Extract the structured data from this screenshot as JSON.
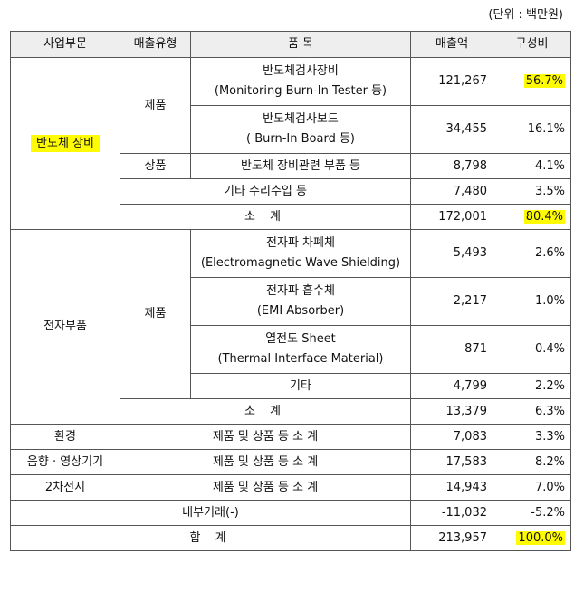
{
  "unit_note": "(단위 : 백만원)",
  "colors": {
    "header_bg": "#eeeeee",
    "highlight": "#fffb00",
    "border": "#555555"
  },
  "headers": {
    "segment": "사업부문",
    "sales_type": "매출유형",
    "item": "품 목",
    "sales": "매출액",
    "ratio": "구성비"
  },
  "semi": {
    "segment": "반도체 장비",
    "product_label": "제품",
    "goods_label": "상품",
    "rows": [
      {
        "name": "반도체검사장비",
        "sub": "(Monitoring Burn-In Tester 등)",
        "sales": "121,267",
        "ratio": "56.7%"
      },
      {
        "name": "반도체검사보드",
        "sub": "( Burn-In Board 등)",
        "sales": "34,455",
        "ratio": "16.1%"
      },
      {
        "name": "반도체 장비관련 부품 등",
        "sales": "8,798",
        "ratio": "4.1%"
      },
      {
        "name": "기타 수리수입 등",
        "sales": "7,480",
        "ratio": "3.5%"
      }
    ],
    "subtotal": {
      "label": "소 계",
      "sales": "172,001",
      "ratio": "80.4%"
    }
  },
  "emi": {
    "segment": "전자부품",
    "product_label": "제품",
    "rows": [
      {
        "name": "전자파 차폐체",
        "sub": "(Electromagnetic Wave Shielding)",
        "sales": "5,493",
        "ratio": "2.6%"
      },
      {
        "name": "전자파 흡수체",
        "sub": "(EMI Absorber)",
        "sales": "2,217",
        "ratio": "1.0%"
      },
      {
        "name": "열전도 Sheet",
        "sub": "(Thermal Interface Material)",
        "sales": "871",
        "ratio": "0.4%"
      },
      {
        "name": "기타",
        "sales": "4,799",
        "ratio": "2.2%"
      }
    ],
    "subtotal": {
      "label": "소 계",
      "sales": "13,379",
      "ratio": "6.3%"
    }
  },
  "others": [
    {
      "segment": "환경",
      "item": "제품 및 상품 등 소 계",
      "sales": "7,083",
      "ratio": "3.3%"
    },
    {
      "segment": "음향 · 영상기기",
      "item": "제품 및 상품 등 소 계",
      "sales": "17,583",
      "ratio": "8.2%"
    },
    {
      "segment": "2차전지",
      "item": "제품 및 상품 등 소 계",
      "sales": "14,943",
      "ratio": "7.0%"
    }
  ],
  "internal": {
    "label": "내부거래(-)",
    "sales": "-11,032",
    "ratio": "-5.2%"
  },
  "total": {
    "label": "합 계",
    "sales": "213,957",
    "ratio": "100.0%"
  }
}
